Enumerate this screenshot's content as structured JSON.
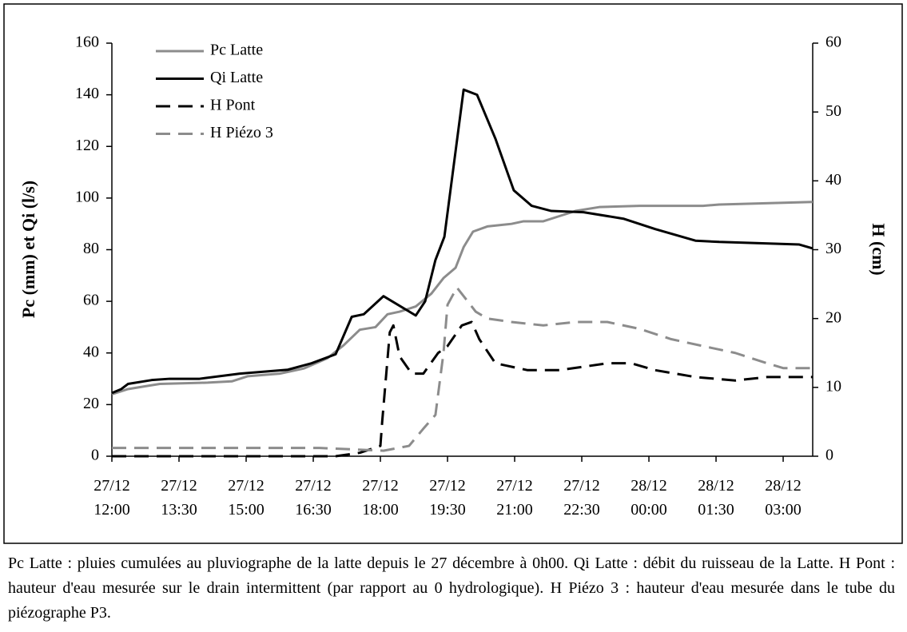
{
  "chart_data": {
    "type": "line",
    "ylabel": "Pc (mm) et Qi (l/s)",
    "y2label": "H (cm)",
    "xlim": [
      12,
      27.66
    ],
    "ylim": [
      0,
      160
    ],
    "y2lim": [
      0,
      60
    ],
    "xticks": [
      {
        "value": 12,
        "label": "27/12\n12:00"
      },
      {
        "value": 13.5,
        "label": "27/12\n13:30"
      },
      {
        "value": 15,
        "label": "27/12\n15:00"
      },
      {
        "value": 16.5,
        "label": "27/12\n16:30"
      },
      {
        "value": 18,
        "label": "27/12\n18:00"
      },
      {
        "value": 19.5,
        "label": "27/12\n19:30"
      },
      {
        "value": 21,
        "label": "27/12\n21:00"
      },
      {
        "value": 22.5,
        "label": "27/12\n22:30"
      },
      {
        "value": 24,
        "label": "28/12\n00:00"
      },
      {
        "value": 25.5,
        "label": "28/12\n01:30"
      },
      {
        "value": 27,
        "label": "28/12\n03:00"
      }
    ],
    "yticks": [
      0,
      20,
      40,
      60,
      80,
      100,
      120,
      140,
      160
    ],
    "y2ticks": [
      0,
      10,
      20,
      30,
      40,
      50,
      60
    ],
    "series": [
      {
        "name": "Pc Latte",
        "color": "#8c8c8c",
        "dash": "solid",
        "x": [
          12.0,
          12.36,
          12.71,
          13.07,
          14.14,
          14.68,
          15.04,
          15.75,
          16.29,
          16.82,
          17.18,
          17.54,
          17.89,
          18.16,
          18.43,
          18.79,
          19.14,
          19.41,
          19.68,
          19.86,
          20.07,
          20.39,
          20.93,
          21.2,
          21.64,
          22.0,
          22.36,
          22.89,
          23.79,
          25.21,
          25.57,
          27.66
        ],
        "values": [
          24,
          26,
          27,
          28,
          28.5,
          29,
          31,
          32,
          34,
          38,
          43,
          49,
          50,
          55,
          56,
          58,
          63,
          69,
          73,
          81,
          87,
          89,
          90,
          91,
          91,
          93,
          95,
          96.5,
          97,
          97,
          97.5,
          98.5
        ]
      },
      {
        "name": "Qi Latte",
        "color": "#000000",
        "dash": "solid",
        "x": [
          12.0,
          12.21,
          12.36,
          12.89,
          13.29,
          13.96,
          14.86,
          15.93,
          16.46,
          17.0,
          17.36,
          17.63,
          18.07,
          18.79,
          19.0,
          19.23,
          19.43,
          19.86,
          20.16,
          20.57,
          20.98,
          21.38,
          21.82,
          22.54,
          23.43,
          24.14,
          25.04,
          25.57,
          27.36,
          27.66
        ],
        "values": [
          24.5,
          26,
          28,
          29.5,
          30,
          30,
          32,
          33.5,
          36,
          39.5,
          54,
          55,
          62,
          54.5,
          60,
          76,
          85,
          142,
          140,
          123,
          103,
          97,
          95,
          94.5,
          92,
          88,
          83.5,
          83,
          82,
          80.5
        ]
      },
      {
        "name": "H Pont",
        "color": "#000000",
        "dash": "dashed",
        "axis": "y2",
        "x": [
          12.0,
          17.0,
          17.54,
          18.0,
          18.04,
          18.21,
          18.29,
          18.43,
          18.7,
          18.96,
          19.29,
          19.5,
          19.82,
          20.04,
          20.21,
          20.57,
          20.93,
          21.29,
          22.0,
          22.54,
          23.07,
          23.61,
          24.14,
          25.04,
          25.93,
          26.64,
          27.36,
          27.66
        ],
        "values": [
          0,
          0,
          0.5,
          1.5,
          5,
          18,
          19,
          14.5,
          12,
          12,
          15,
          16,
          19,
          19.5,
          17,
          13.5,
          13,
          12.5,
          12.5,
          13,
          13.5,
          13.5,
          12.5,
          11.5,
          11,
          11.5,
          11.5,
          11.5
        ]
      },
      {
        "name": "H Piézo 3",
        "color": "#8c8c8c",
        "dash": "dashed",
        "axis": "y2",
        "x": [
          12.0,
          16.64,
          18.07,
          18.64,
          18.96,
          19.23,
          19.41,
          19.5,
          19.71,
          19.95,
          20.13,
          20.39,
          20.93,
          21.64,
          22.36,
          23.07,
          23.79,
          24.5,
          25.21,
          25.93,
          26.64,
          27.0,
          27.66
        ],
        "values": [
          1.2,
          1.2,
          0.8,
          1.5,
          4,
          6,
          15,
          22,
          24.5,
          22.5,
          21,
          20,
          19.5,
          19,
          19.5,
          19.5,
          18.5,
          17,
          16,
          15,
          13.5,
          12.8,
          12.8
        ]
      }
    ]
  },
  "caption": "Pc Latte : pluies cumulées au pluviographe de la latte depuis le 27 décembre à 0h00. Qi Latte : débit du ruisseau de la Latte. H Pont : hauteur d'eau mesurée sur le drain intermittent (par rapport au 0 hydrologique). H Piézo 3 : hauteur d'eau mesurée dans le tube du piézographe P3."
}
